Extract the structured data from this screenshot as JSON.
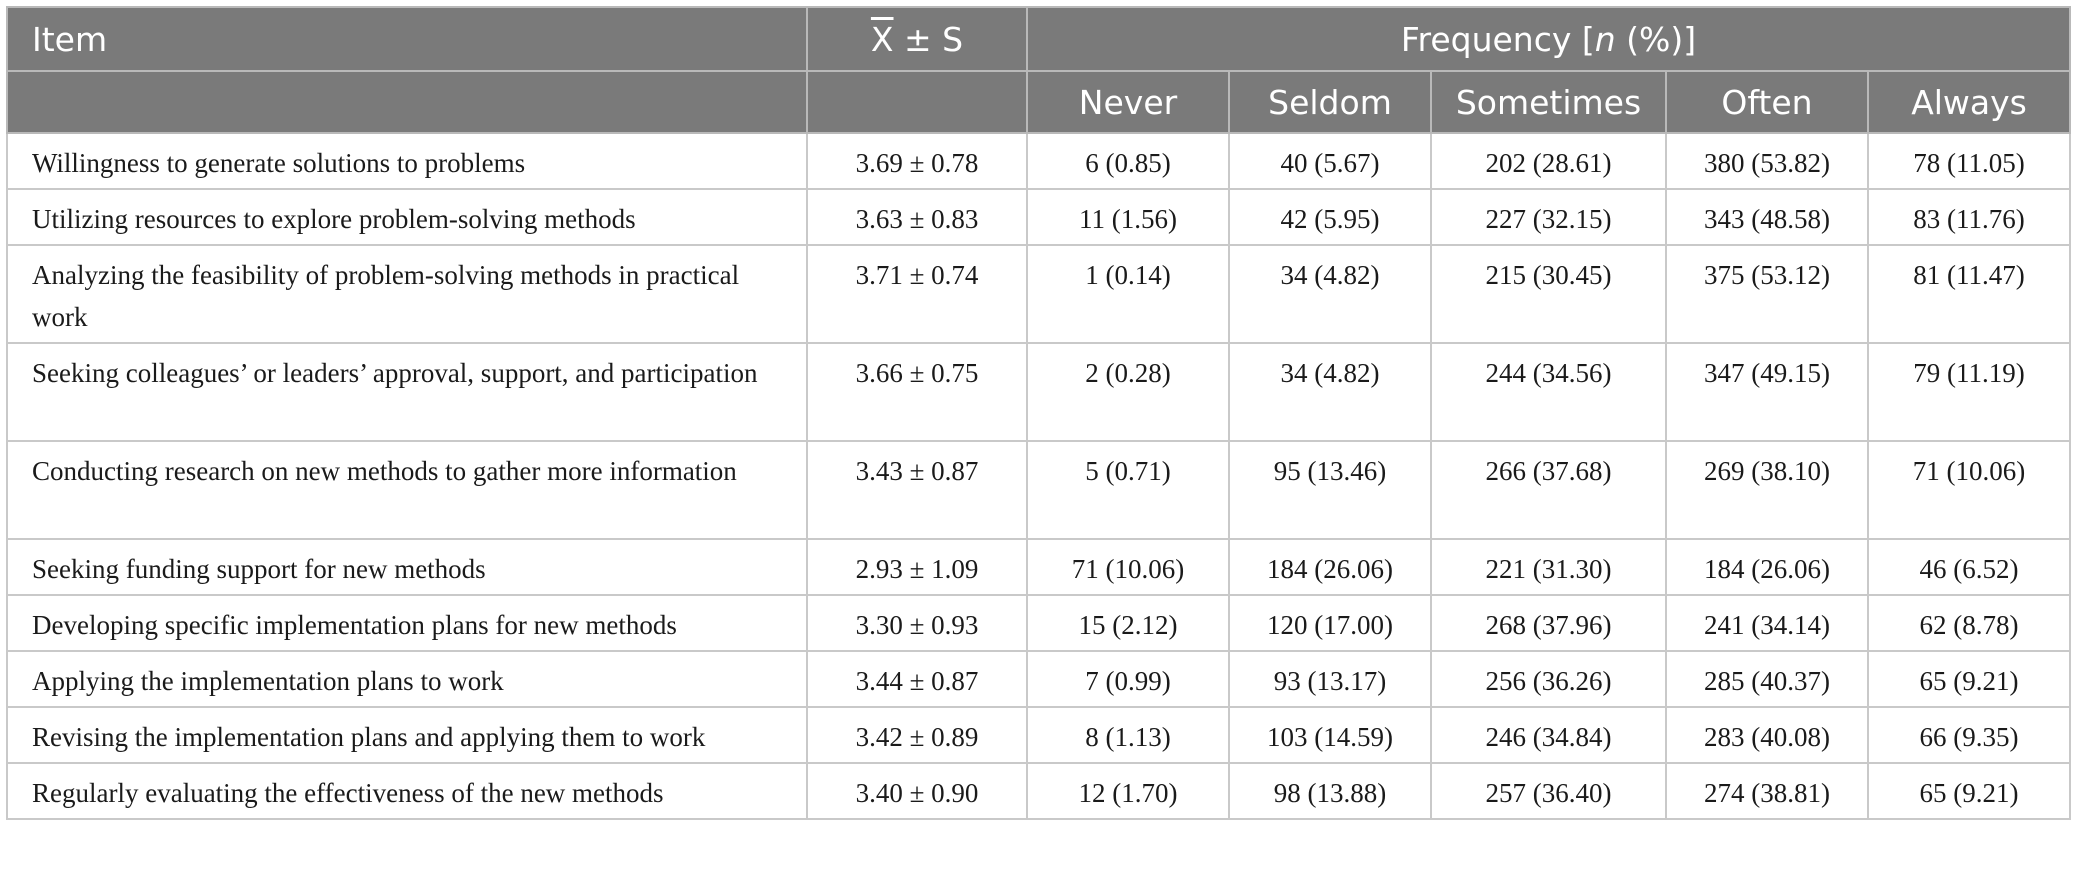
{
  "header": {
    "item": "Item",
    "mean_symbol": "X",
    "mean_suffix": " ± S",
    "frequency_prefix": "Frequency [",
    "frequency_n": "n",
    "frequency_suffix": " (%)]",
    "levels": [
      "Never",
      "Seldom",
      "Sometimes",
      "Often",
      "Always"
    ]
  },
  "rows": [
    {
      "item": "Willingness to generate solutions to problems",
      "mean": "3.69 ± 0.78",
      "never": "6 (0.85)",
      "seldom": "40 (5.67)",
      "sometimes": "202 (28.61)",
      "often": "380 (53.82)",
      "always": "78 (11.05)"
    },
    {
      "item": "Utilizing resources to explore problem-solving methods",
      "mean": "3.63 ± 0.83",
      "never": "11 (1.56)",
      "seldom": "42 (5.95)",
      "sometimes": "227 (32.15)",
      "often": "343 (48.58)",
      "always": "83 (11.76)"
    },
    {
      "item": "Analyzing the feasibility of problem-solving methods in practical work",
      "mean": "3.71 ± 0.74",
      "never": "1 (0.14)",
      "seldom": "34 (4.82)",
      "sometimes": "215 (30.45)",
      "often": "375 (53.12)",
      "always": "81 (11.47)"
    },
    {
      "item": "Seeking colleagues’ or leaders’ approval, support, and participation",
      "mean": "3.66 ± 0.75",
      "never": "2 (0.28)",
      "seldom": "34 (4.82)",
      "sometimes": "244 (34.56)",
      "often": "347 (49.15)",
      "always": "79 (11.19)"
    },
    {
      "item": "Conducting research on new methods to gather more information",
      "mean": "3.43 ± 0.87",
      "never": "5 (0.71)",
      "seldom": "95 (13.46)",
      "sometimes": "266 (37.68)",
      "often": "269 (38.10)",
      "always": "71 (10.06)"
    },
    {
      "item": "Seeking funding support for new methods",
      "mean": "2.93 ± 1.09",
      "never": "71 (10.06)",
      "seldom": "184 (26.06)",
      "sometimes": "221 (31.30)",
      "often": "184 (26.06)",
      "always": "46 (6.52)"
    },
    {
      "item": "Developing specific implementation plans for new methods",
      "mean": "3.30 ± 0.93",
      "never": "15 (2.12)",
      "seldom": "120 (17.00)",
      "sometimes": "268 (37.96)",
      "often": "241 (34.14)",
      "always": "62 (8.78)"
    },
    {
      "item": "Applying the implementation plans to work",
      "mean": "3.44 ± 0.87",
      "never": "7 (0.99)",
      "seldom": "93 (13.17)",
      "sometimes": "256 (36.26)",
      "often": "285 (40.37)",
      "always": "65 (9.21)"
    },
    {
      "item": "Revising the implementation plans and applying them to work",
      "mean": "3.42 ± 0.89",
      "never": "8 (1.13)",
      "seldom": "103 (14.59)",
      "sometimes": "246 (34.84)",
      "often": "283 (40.08)",
      "always": "66 (9.35)"
    },
    {
      "item": "Regularly evaluating the effectiveness of the new methods",
      "mean": "3.40 ± 0.90",
      "never": "12 (1.70)",
      "seldom": "98 (13.88)",
      "sometimes": "257 (36.40)",
      "often": "274 (38.81)",
      "always": "65 (9.21)"
    }
  ]
}
